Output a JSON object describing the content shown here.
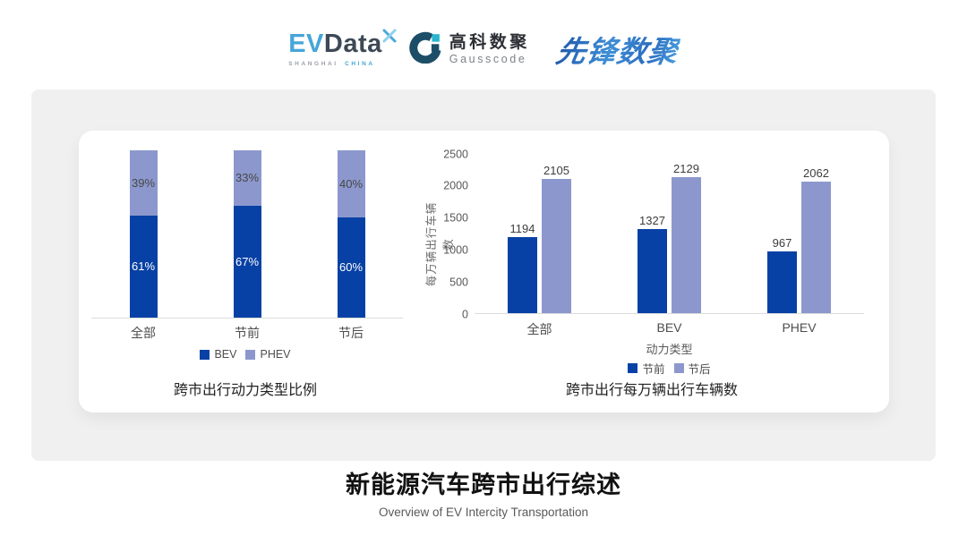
{
  "header": {
    "evdata": {
      "part1": "EV",
      "part2": "Data",
      "sub1": "SHANGHAI",
      "sub2": "CHINA"
    },
    "gausscode": {
      "name_cn": "高科数聚",
      "name_en": "Gausscode"
    },
    "pioneer": {
      "name": "先锋数聚"
    }
  },
  "chart_data": [
    {
      "type": "bar",
      "variant": "stacked-100",
      "title": "跨市出行动力类型比例",
      "categories": [
        "全部",
        "节前",
        "节后"
      ],
      "series": [
        {
          "name": "BEV",
          "color": "#0841a5",
          "values": [
            61,
            67,
            60
          ]
        },
        {
          "name": "PHEV",
          "color": "#8c98cd",
          "values": [
            39,
            33,
            40
          ]
        }
      ],
      "value_unit": "%",
      "ylim": [
        0,
        100
      ],
      "legend_position": "bottom",
      "grid": false
    },
    {
      "type": "bar",
      "variant": "grouped",
      "title": "跨市出行每万辆出行车辆数",
      "categories": [
        "全部",
        "BEV",
        "PHEV"
      ],
      "xlabel": "动力类型",
      "ylabel": "每万辆出行车辆数",
      "ylim": [
        0,
        2500
      ],
      "yticks": [
        0,
        500,
        1000,
        1500,
        2000,
        2500
      ],
      "series": [
        {
          "name": "节前",
          "color": "#0841a5",
          "values": [
            1194,
            1327,
            967
          ]
        },
        {
          "name": "节后",
          "color": "#8c98cd",
          "values": [
            2105,
            2129,
            2062
          ]
        }
      ],
      "legend_position": "bottom",
      "grid": false
    }
  ],
  "footer": {
    "title": "新能源汽车跨市出行综述",
    "subtitle": "Overview of EV Intercity Transportation"
  }
}
